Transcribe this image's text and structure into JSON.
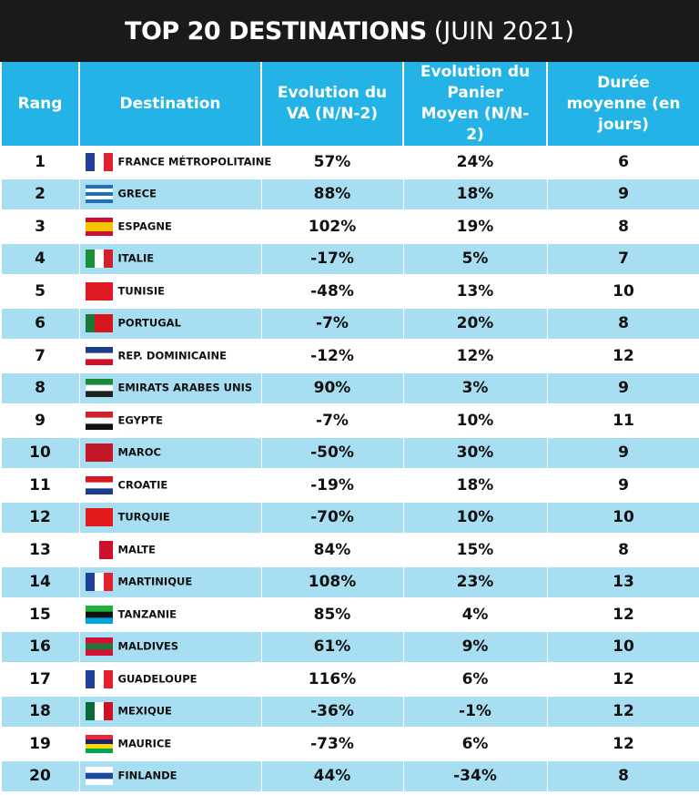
{
  "title": {
    "main": "TOP 20 DESTINATIONS",
    "sub": "(JUIN 2021)"
  },
  "table": {
    "header": [
      "Rang",
      "Destination",
      "Evolution du VA (N/N-2)",
      "Evolution du Panier Moyen (N/N-2)",
      "Durée moyenne (en jours)"
    ],
    "rows": [
      [
        "1",
        "FRANCE MÉTROPOLITAINE",
        "57%",
        "24%",
        "6"
      ],
      [
        "2",
        "GRECE",
        "88%",
        "18%",
        "9"
      ],
      [
        "3",
        "ESPAGNE",
        "102%",
        "19%",
        "8"
      ],
      [
        "4",
        "ITALIE",
        "-17%",
        "5%",
        "7"
      ],
      [
        "5",
        "TUNISIE",
        "-48%",
        "13%",
        "10"
      ],
      [
        "6",
        "PORTUGAL",
        "-7%",
        "20%",
        "8"
      ],
      [
        "7",
        "REP. DOMINICAINE",
        "-12%",
        "12%",
        "12"
      ],
      [
        "8",
        "EMIRATS ARABES UNIS",
        "90%",
        "3%",
        "9"
      ],
      [
        "9",
        "EGYPTE",
        "-7%",
        "10%",
        "11"
      ],
      [
        "10",
        "MAROC",
        "-50%",
        "30%",
        "9"
      ],
      [
        "11",
        "CROATIE",
        "-19%",
        "18%",
        "9"
      ],
      [
        "12",
        "TURQUIE",
        "-70%",
        "10%",
        "10"
      ],
      [
        "13",
        "MALTE",
        "84%",
        "15%",
        "8"
      ],
      [
        "14",
        "MARTINIQUE",
        "108%",
        "23%",
        "13"
      ],
      [
        "15",
        "TANZANIE",
        "85%",
        "4%",
        "12"
      ],
      [
        "16",
        "MALDIVES",
        "61%",
        "9%",
        "10"
      ],
      [
        "17",
        "GUADELOUPE",
        "116%",
        "6%",
        "12"
      ],
      [
        "18",
        "MEXIQUE",
        "-36%",
        "-1%",
        "12"
      ],
      [
        "19",
        "MAURICE",
        "-73%",
        "6%",
        "12"
      ],
      [
        "20",
        "FINLANDE",
        "44%",
        "-34%",
        "8"
      ]
    ]
  }
}
